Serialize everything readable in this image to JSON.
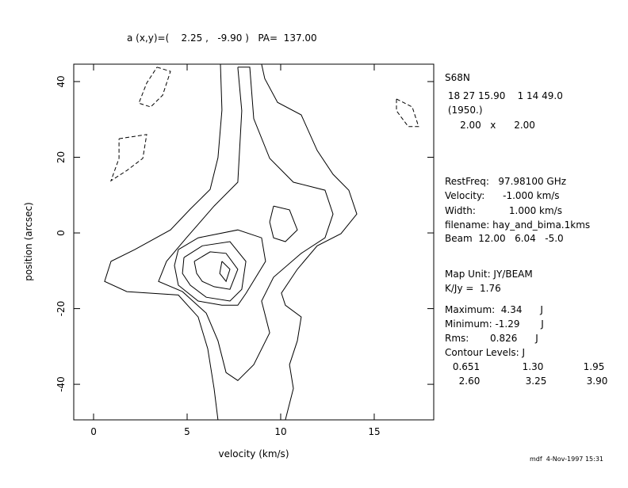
{
  "chart_data": {
    "type": "contour",
    "title": "a (x,y)=(    2.25 ,   -9.90 )   PA=  137.00",
    "x_label": "velocity (km/s)",
    "y_label": "position (arcsec)",
    "xlim": [
      -1.06,
      18.18
    ],
    "ylim": [
      -49.4,
      44.6
    ],
    "xticks": [
      0,
      5,
      10,
      15
    ],
    "yticks": [
      -40,
      -20,
      0,
      20,
      40
    ],
    "contours": [
      {
        "level": 0.651,
        "x": [
          6.78,
          6.86,
          6.65,
          6.23,
          5.17,
          4.11,
          2.2,
          0.93,
          0.59,
          1.78,
          4.53,
          5.59,
          6.1,
          6.44,
          6.65,
          10.25,
          10.68,
          10.47,
          10.89,
          11.1,
          10.25,
          10.04,
          10.89,
          11.95,
          13.22,
          14.07,
          13.64,
          12.8,
          11.95,
          11.1,
          9.83,
          9.15,
          8.98
        ],
        "y": [
          44.6,
          32.5,
          19.9,
          11.5,
          6.3,
          0.8,
          -4.4,
          -7.5,
          -12.8,
          -15.5,
          -16.4,
          -22.2,
          -30.6,
          -41.1,
          -49.4,
          -49.4,
          -41.1,
          -34.8,
          -28.5,
          -22.2,
          -19.1,
          -15.9,
          -9.6,
          -3.4,
          -0.2,
          5.0,
          11.3,
          15.5,
          21.8,
          31.2,
          34.5,
          40.8,
          44.6
        ]
      },
      {
        "level": 1.3,
        "x": [
          7.71,
          7.92,
          7.71,
          6.44,
          4.96,
          3.9,
          3.47,
          4.75,
          6.02,
          6.65,
          7.08,
          7.71,
          8.56,
          9.41,
          8.98,
          9.62,
          11.1,
          12.37,
          12.8,
          12.37,
          10.68,
          9.41,
          8.56,
          8.35,
          7.71
        ],
        "y": [
          43.8,
          32.3,
          13.4,
          7.1,
          -1.3,
          -7.5,
          -12.8,
          -15.5,
          -21.2,
          -28.5,
          -36.9,
          -39.0,
          -34.8,
          -26.4,
          -18.0,
          -11.7,
          -5.4,
          -1.3,
          5.0,
          11.3,
          13.4,
          19.7,
          30.2,
          43.8,
          43.8
        ]
      },
      {
        "level": 1.95,
        "x": [
          4.53,
          5.59,
          7.71,
          8.98,
          9.19,
          8.14,
          7.71,
          6.86,
          5.59,
          4.53,
          4.32,
          4.53
        ],
        "y": [
          -4.4,
          -1.3,
          0.8,
          -1.3,
          -7.5,
          -16.0,
          -19.1,
          -19.1,
          -18.0,
          -13.8,
          -8.6,
          -4.4
        ]
      },
      {
        "level": 1.95,
        "x": [
          9.62,
          10.47,
          10.89,
          10.25,
          9.62,
          9.41,
          9.62
        ],
        "y": [
          7.1,
          6.1,
          0.8,
          -2.3,
          -1.3,
          2.9,
          7.1
        ]
      },
      {
        "level": 2.6,
        "x": [
          4.83,
          5.81,
          7.29,
          8.14,
          7.92,
          7.29,
          6.02,
          5.17,
          4.75,
          4.83
        ],
        "y": [
          -6.5,
          -3.4,
          -2.3,
          -7.5,
          -14.9,
          -18.0,
          -17.0,
          -13.8,
          -10.7,
          -6.5
        ]
      },
      {
        "level": 3.25,
        "x": [
          5.38,
          6.23,
          7.08,
          7.71,
          7.29,
          6.44,
          5.81,
          5.51,
          5.38
        ],
        "y": [
          -7.5,
          -5.0,
          -5.4,
          -9.6,
          -14.9,
          -14.2,
          -12.8,
          -10.7,
          -7.5
        ]
      },
      {
        "level": 3.9,
        "x": [
          6.86,
          7.29,
          7.08,
          6.74,
          6.86
        ],
        "y": [
          -7.5,
          -9.6,
          -12.8,
          -10.7,
          -7.5
        ]
      },
      {
        "level": -0.651,
        "x": [
          3.39,
          4.11,
          3.69,
          3.05,
          2.42,
          2.84,
          3.39
        ],
        "y": [
          43.8,
          42.7,
          36.4,
          33.3,
          34.3,
          39.6,
          43.8
        ]
      },
      {
        "level": -0.651,
        "x": [
          1.36,
          2.84,
          2.63,
          1.78,
          0.93,
          1.36,
          1.36
        ],
        "y": [
          24.9,
          26.0,
          19.7,
          16.5,
          13.8,
          19.7,
          24.9
        ]
      },
      {
        "level": -0.651,
        "x": [
          16.19,
          17.03,
          17.37,
          16.82,
          16.19,
          16.19
        ],
        "y": [
          35.4,
          33.3,
          28.1,
          28.1,
          32.3,
          35.4
        ]
      }
    ],
    "negative_dashed": true
  },
  "info": [
    "S68N",
    " 18 27 15.90    1 14 49.0",
    " (1950.)",
    "     2.00   x      2.00",
    "RestFreq:   97.98100 GHz",
    "Velocity:      -1.000 km/s",
    "Width:           1.000 km/s",
    "filename: hay_and_bima.1kms",
    "Beam  12.00   6.04   -5.0",
    "Map Unit: JY/BEAM",
    "K/Jy =  1.76",
    "Maximum:  4.34      J",
    "Minimum: -1.29       J",
    "Rms:       0.826      J",
    "Contour Levels: J"
  ],
  "contour_levels": [
    "0.651",
    "1.30",
    "1.95",
    "2.60",
    "3.25",
    "3.90"
  ],
  "footer": "mdf  4-Nov-1997 15:31"
}
